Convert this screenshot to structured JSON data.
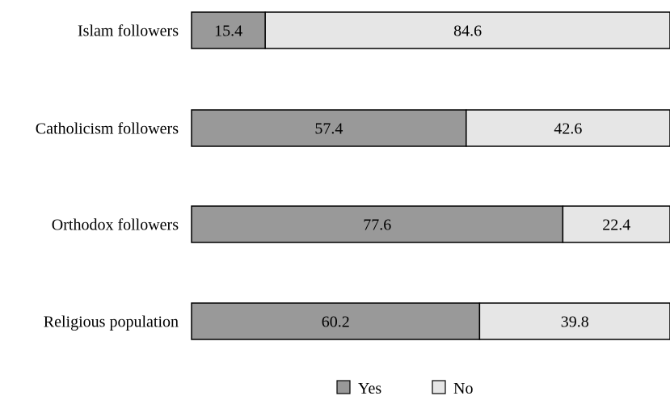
{
  "chart_data": {
    "type": "bar",
    "orientation": "horizontal",
    "stacked": true,
    "percent_stacked": true,
    "categories": [
      "Islam followers",
      "Catholicism followers",
      "Orthodox followers",
      "Religious population"
    ],
    "series": [
      {
        "name": "Yes",
        "values": [
          15.4,
          57.4,
          77.6,
          60.2
        ],
        "color": "#999999"
      },
      {
        "name": "No",
        "values": [
          84.6,
          42.6,
          22.4,
          39.8
        ],
        "color": "#e6e6e6"
      }
    ],
    "xlim": [
      0,
      100
    ],
    "grid": false,
    "legend_position": "bottom"
  }
}
